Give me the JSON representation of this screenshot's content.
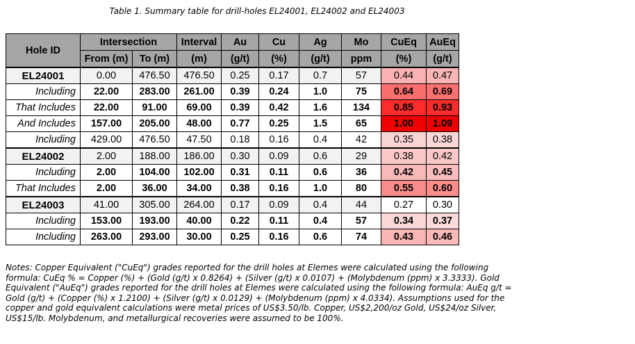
{
  "title": "Table 1. Summary table for drill-holes EL24001, EL24002 and EL24003",
  "header": {
    "hole_id": "Hole ID",
    "intersection": "Intersection",
    "interval": "Interval",
    "au": "Au",
    "cu": "Cu",
    "ag": "Ag",
    "mo": "Mo",
    "cueq": "CuEq",
    "aueq": "AuEq",
    "from": "From (m)",
    "to": "To (m)",
    "interval_unit": "(m)",
    "au_unit": "(g/t)",
    "cu_unit": "(%)",
    "ag_unit": "(g/t)",
    "mo_unit": "ppm",
    "cueq_unit": "(%)",
    "aueq_unit": "(g/t)"
  },
  "heat_color": "#ff0000",
  "rows": [
    {
      "type": "hole",
      "label": "EL24001",
      "cells": [
        "0.00",
        "476.50",
        "476.50",
        "0.25",
        "0.17",
        "0.7",
        "57",
        "0.44",
        "0.47"
      ]
    },
    {
      "type": "sub",
      "label": "Including",
      "cells": [
        "22.00",
        "283.00",
        "261.00",
        "0.39",
        "0.24",
        "1.0",
        "75",
        "0.64",
        "0.69"
      ]
    },
    {
      "type": "sub",
      "label": "That Includes",
      "cells": [
        "22.00",
        "91.00",
        "69.00",
        "0.39",
        "0.42",
        "1.6",
        "134",
        "0.85",
        "0.93"
      ]
    },
    {
      "type": "sub",
      "label": "And Includes",
      "cells": [
        "157.00",
        "205.00",
        "48.00",
        "0.77",
        "0.25",
        "1.5",
        "65",
        "1.00",
        "1.09"
      ]
    },
    {
      "type": "light",
      "label": "Including",
      "cells": [
        "429.00",
        "476.50",
        "47.50",
        "0.18",
        "0.16",
        "0.4",
        "42",
        "0.35",
        "0.38"
      ]
    },
    {
      "type": "hole",
      "label": "EL24002",
      "cells": [
        "2.00",
        "188.00",
        "186.00",
        "0.30",
        "0.09",
        "0.6",
        "29",
        "0.38",
        "0.42"
      ]
    },
    {
      "type": "sub",
      "label": "Including",
      "cells": [
        "2.00",
        "104.00",
        "102.00",
        "0.31",
        "0.11",
        "0.6",
        "36",
        "0.42",
        "0.45"
      ]
    },
    {
      "type": "sub",
      "label": "That Includes",
      "cells": [
        "2.00",
        "36.00",
        "34.00",
        "0.38",
        "0.16",
        "1.0",
        "80",
        "0.55",
        "0.60"
      ]
    },
    {
      "type": "hole",
      "label": "EL24003",
      "cells": [
        "41.00",
        "305.00",
        "264.00",
        "0.17",
        "0.09",
        "0.4",
        "44",
        "0.27",
        "0.30"
      ]
    },
    {
      "type": "sub",
      "label": "Including",
      "cells": [
        "153.00",
        "193.00",
        "40.00",
        "0.22",
        "0.11",
        "0.4",
        "57",
        "0.34",
        "0.37"
      ]
    },
    {
      "type": "sub",
      "label": "Including",
      "cells": [
        "263.00",
        "293.00",
        "30.00",
        "0.25",
        "0.16",
        "0.6",
        "74",
        "0.43",
        "0.46"
      ]
    }
  ],
  "notes": "Notes: Copper Equivalent (\"CuEq\") grades reported for the drill holes at Elemes were calculated using the following formula: CuEq % = Copper (%) + (Gold (g/t) x 0.8264) + (Silver (g/t) x 0.0107) + (Molybdenum (ppm) x 3.3333). Gold Equivalent (\"AuEq\") grades reported for the drill holes at Elemes were calculated using the following formula: AuEq g/t = Gold (g/t) + (Copper (%) x 1.2100) + (Silver (g/t) x 0.0129) + (Molybdenum (ppm) x 4.0334). Assumptions used for the copper and gold equivalent calculations were metal prices of US$3.50/lb. Copper, US$2,200/oz Gold, US$24/oz Silver, US$15/lb. Molybdenum, and metallurgical recoveries were assumed to be 100%."
}
